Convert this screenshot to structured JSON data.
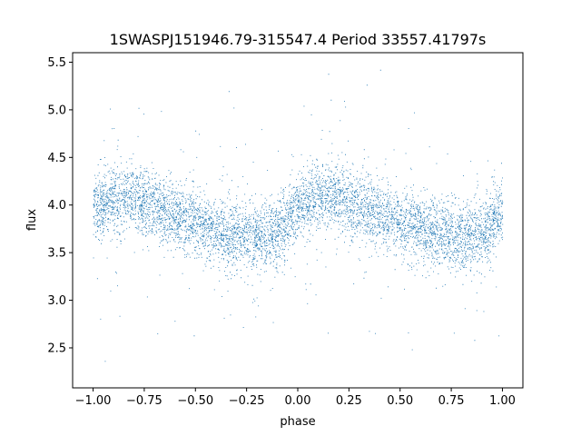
{
  "chart_data": {
    "type": "scatter",
    "title": "1SWASPJ151946.79-315547.4 Period 33557.41797s",
    "xlabel": "phase",
    "ylabel": "flux",
    "xlim": [
      -1.1,
      1.1
    ],
    "ylim": [
      2.08,
      5.6
    ],
    "xticks": [
      -1.0,
      -0.75,
      -0.5,
      -0.25,
      0.0,
      0.25,
      0.5,
      0.75,
      1.0
    ],
    "xtick_labels": [
      "−1.00",
      "−0.75",
      "−0.50",
      "−0.25",
      "0.00",
      "0.25",
      "0.50",
      "0.75",
      "1.00"
    ],
    "yticks": [
      2.5,
      3.0,
      3.5,
      4.0,
      4.5,
      5.0,
      5.5
    ],
    "ytick_labels": [
      "2.5",
      "3.0",
      "3.5",
      "4.0",
      "4.5",
      "5.0",
      "5.5"
    ],
    "grid": false,
    "marker_color": "#1f77b4",
    "phase_range": [
      -1.0,
      1.0
    ],
    "light_curve": {
      "phase": [
        -1.0,
        -0.9,
        -0.8,
        -0.7,
        -0.6,
        -0.5,
        -0.4,
        -0.3,
        -0.2,
        -0.1,
        0.0,
        0.1,
        0.2,
        0.3,
        0.4,
        0.5,
        0.6,
        0.7,
        0.8,
        0.9,
        1.0
      ],
      "flux": [
        3.95,
        4.08,
        4.08,
        4.0,
        3.9,
        3.8,
        3.73,
        3.68,
        3.66,
        3.72,
        3.95,
        4.08,
        4.08,
        4.0,
        3.9,
        3.8,
        3.73,
        3.68,
        3.66,
        3.72,
        3.95
      ]
    }
  }
}
